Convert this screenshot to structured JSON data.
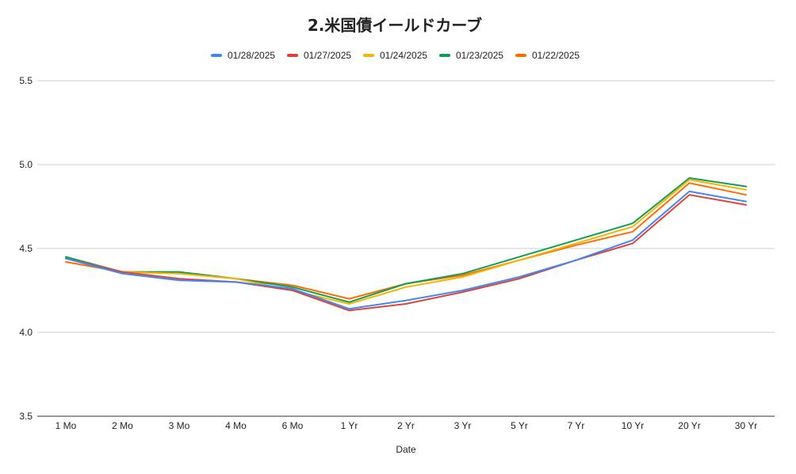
{
  "chart_data": {
    "type": "line",
    "title": "2.米国債イールドカーブ",
    "xlabel": "Date",
    "ylabel": "",
    "ylim": [
      3.5,
      5.5
    ],
    "yticks": [
      "3.5",
      "4.0",
      "4.5",
      "5.0",
      "5.5"
    ],
    "grid": true,
    "legend_position": "top",
    "categories": [
      "1 Mo",
      "2 Mo",
      "3 Mo",
      "4 Mo",
      "6 Mo",
      "1 Yr",
      "2 Yr",
      "3 Yr",
      "5 Yr",
      "7 Yr",
      "10 Yr",
      "20 Yr",
      "30 Yr"
    ],
    "series": [
      {
        "name": "01/28/2025",
        "color": "#4285f4",
        "values": [
          4.44,
          4.35,
          4.31,
          4.3,
          4.26,
          4.14,
          4.19,
          4.25,
          4.33,
          4.43,
          4.55,
          4.84,
          4.78
        ]
      },
      {
        "name": "01/27/2025",
        "color": "#db4437",
        "values": [
          4.44,
          4.36,
          4.32,
          4.3,
          4.25,
          4.13,
          4.17,
          4.24,
          4.32,
          4.43,
          4.53,
          4.82,
          4.76
        ]
      },
      {
        "name": "01/24/2025",
        "color": "#f4b400",
        "values": [
          4.44,
          4.36,
          4.35,
          4.32,
          4.25,
          4.17,
          4.27,
          4.33,
          4.43,
          4.53,
          4.63,
          4.91,
          4.85
        ]
      },
      {
        "name": "01/23/2025",
        "color": "#0f9d58",
        "values": [
          4.45,
          4.36,
          4.36,
          4.32,
          4.27,
          4.18,
          4.29,
          4.35,
          4.45,
          4.55,
          4.65,
          4.92,
          4.87
        ]
      },
      {
        "name": "01/22/2025",
        "color": "#ff6d01",
        "values": [
          4.42,
          4.36,
          4.36,
          4.32,
          4.28,
          4.2,
          4.29,
          4.34,
          4.43,
          4.52,
          4.6,
          4.89,
          4.82
        ]
      }
    ]
  }
}
